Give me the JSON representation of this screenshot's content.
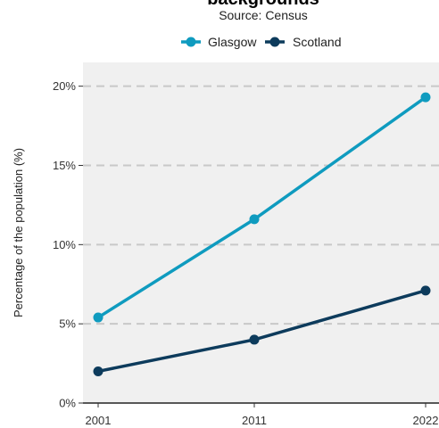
{
  "chart_data": {
    "type": "line",
    "title": "backgrounds",
    "subtitle": "Source: Census",
    "xlabel": "",
    "ylabel": "Percentage of the population (%)",
    "x": [
      2001,
      2011,
      2022
    ],
    "x_tick_labels": [
      "2001",
      "2011",
      "2022"
    ],
    "ylim": [
      0,
      21.5
    ],
    "y_ticks": [
      0,
      5,
      10,
      15,
      20
    ],
    "y_tick_labels": [
      "0%",
      "5%",
      "10%",
      "15%",
      "20%"
    ],
    "grid": "horizontal dashed",
    "legend_position": "top",
    "series": [
      {
        "name": "Glasgow",
        "color": "#0f9bbf",
        "values": [
          5.4,
          11.6,
          19.3
        ]
      },
      {
        "name": "Scotland",
        "color": "#0d3b5c",
        "values": [
          2.0,
          4.0,
          7.1
        ]
      }
    ]
  }
}
